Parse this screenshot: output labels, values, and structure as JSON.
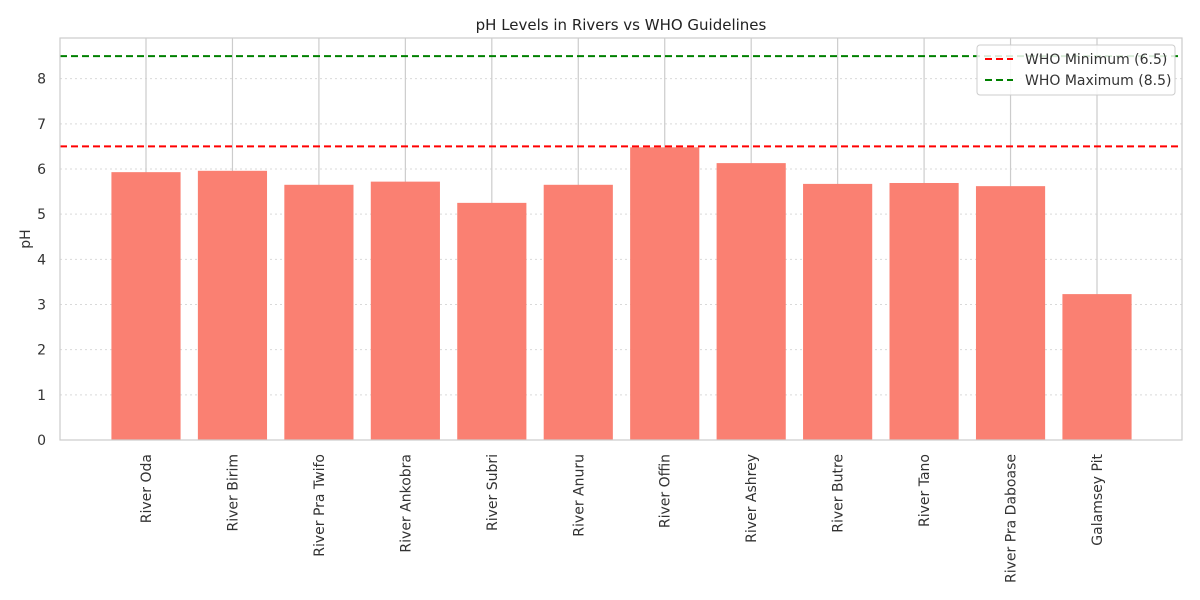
{
  "chart_data": {
    "type": "bar",
    "title": "pH Levels in Rivers vs WHO Guidelines",
    "xlabel": "",
    "ylabel": "pH",
    "categories": [
      "River Oda",
      "River Birim",
      "River Pra Twifo",
      "River Ankobra",
      "River Subri",
      "River Anuru",
      "River Offin",
      "River Ashrey",
      "River Butre",
      "River Tano",
      "River Pra Daboase",
      "Galamsey Pit"
    ],
    "values": [
      5.93,
      5.96,
      5.65,
      5.72,
      5.25,
      5.65,
      6.48,
      6.13,
      5.67,
      5.69,
      5.62,
      3.23
    ],
    "ylim": [
      0,
      8.9
    ],
    "yticks": [
      0,
      1,
      2,
      3,
      4,
      5,
      6,
      7,
      8
    ],
    "bar_color": "#fa8072",
    "grid": true,
    "legend_position": "top-right",
    "reference_lines": [
      {
        "name": "WHO Minimum (6.5)",
        "value": 6.5,
        "color": "#ff0000",
        "style": "dashed"
      },
      {
        "name": "WHO Maximum (8.5)",
        "value": 8.5,
        "color": "#008000",
        "style": "dashed"
      }
    ]
  }
}
